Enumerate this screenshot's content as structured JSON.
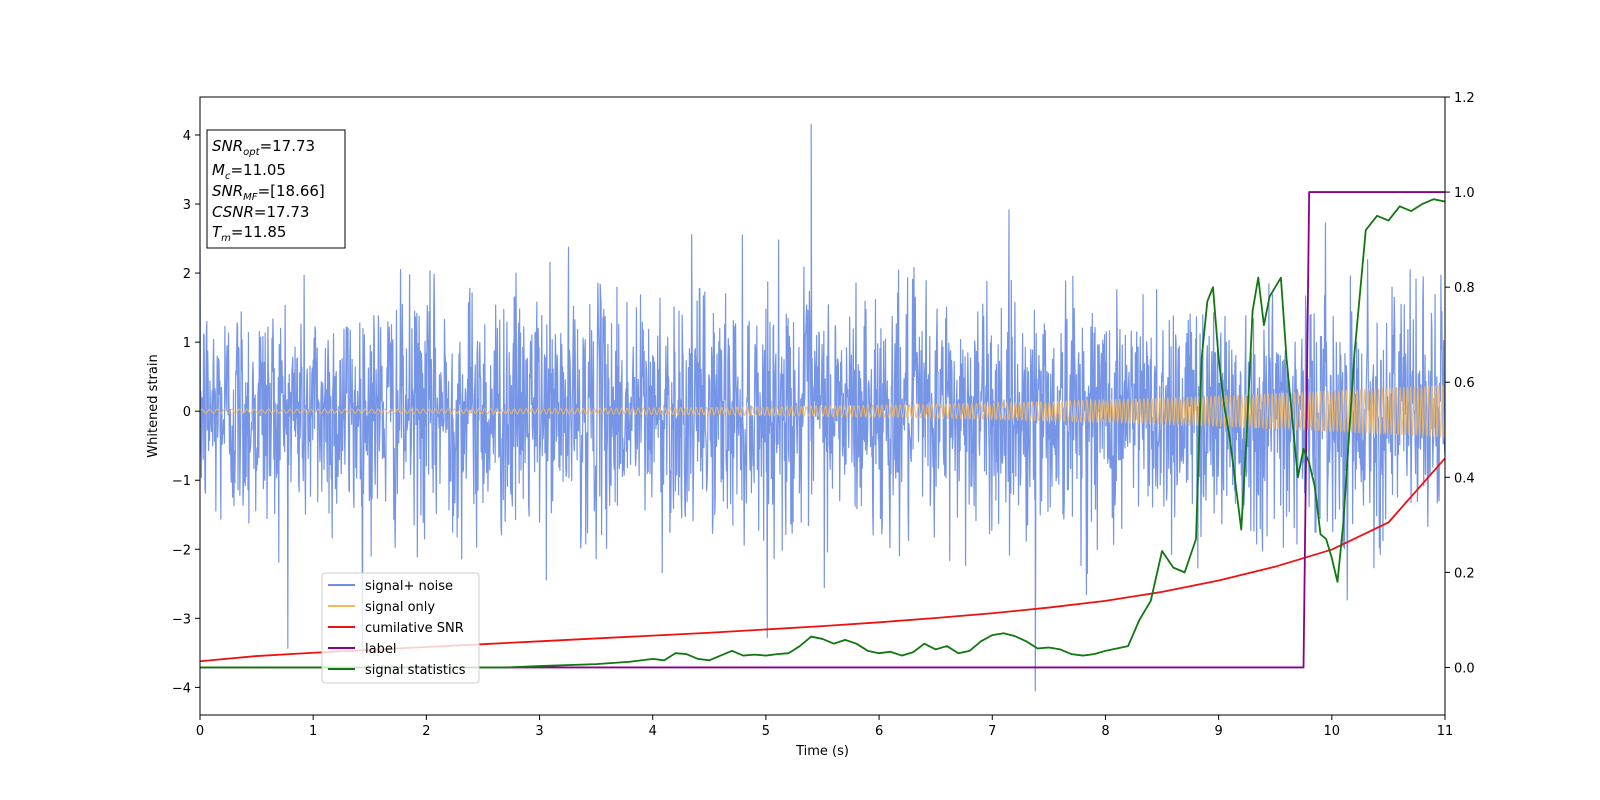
{
  "chart_data": {
    "type": "line",
    "xlabel": "Time (s)",
    "ylabel": "Whitened strain",
    "xlim": [
      0,
      11
    ],
    "ylim": [
      -4.4,
      4.55
    ],
    "y2lim": [
      -0.1,
      1.2
    ],
    "x_ticks": [
      0,
      1,
      2,
      3,
      4,
      5,
      6,
      7,
      8,
      9,
      10,
      11
    ],
    "y_ticks": [
      -4,
      -3,
      -2,
      -1,
      0,
      1,
      2,
      3,
      4
    ],
    "y2_ticks": [
      0.0,
      0.2,
      0.4,
      0.6,
      0.8,
      1.0,
      1.2
    ],
    "grid": false,
    "legend_position": "lower-left",
    "annotation": {
      "lines": [
        {
          "main": "SNR",
          "sub": "opt",
          "rest": "=17.73"
        },
        {
          "main": "M",
          "sub": "c",
          "rest": "=11.05"
        },
        {
          "main": "SNR",
          "sub": "MF",
          "rest": "=[18.66]"
        },
        {
          "main": "CSNR",
          "sub": "",
          "rest": "=17.73"
        },
        {
          "main": "T",
          "sub": "m",
          "rest": "=11.85"
        }
      ]
    },
    "series": [
      {
        "name": "signal+ noise",
        "axis": "left",
        "color": "#6f8fe6",
        "noise": {
          "sigma": 1.0,
          "peak_max": 4.15,
          "peak_min": -4.05,
          "dt": 0.004
        }
      },
      {
        "name": "signal only",
        "axis": "left",
        "color": "#f4b860",
        "chirp": {
          "amp_start": 0.03,
          "amp_end": 0.38,
          "cycles": 260
        }
      },
      {
        "name": "cumilative SNR",
        "axis": "right",
        "color": "#ee1111",
        "x": [
          0,
          0.5,
          1,
          1.5,
          2,
          2.5,
          3,
          3.5,
          4,
          4.5,
          5,
          5.5,
          6,
          6.5,
          7,
          7.5,
          8,
          8.5,
          9,
          9.5,
          10,
          10.5,
          11
        ],
        "y": [
          0.013,
          0.024,
          0.031,
          0.037,
          0.043,
          0.049,
          0.055,
          0.061,
          0.067,
          0.073,
          0.08,
          0.087,
          0.095,
          0.104,
          0.114,
          0.126,
          0.14,
          0.159,
          0.183,
          0.212,
          0.248,
          0.305,
          0.44
        ]
      },
      {
        "name": "label",
        "axis": "right",
        "color": "#880088",
        "x": [
          0,
          9.75,
          9.8,
          11
        ],
        "y": [
          0,
          0,
          1,
          1
        ]
      },
      {
        "name": "signal statistics",
        "axis": "right",
        "color": "#117711",
        "x": [
          0,
          1,
          2,
          2.7,
          3,
          3.5,
          3.8,
          4.0,
          4.1,
          4.2,
          4.3,
          4.4,
          4.5,
          4.6,
          4.7,
          4.8,
          4.9,
          5.0,
          5.1,
          5.2,
          5.3,
          5.4,
          5.5,
          5.6,
          5.7,
          5.8,
          5.9,
          6.0,
          6.1,
          6.2,
          6.3,
          6.4,
          6.5,
          6.6,
          6.7,
          6.8,
          6.9,
          7.0,
          7.1,
          7.2,
          7.3,
          7.4,
          7.5,
          7.6,
          7.7,
          7.8,
          7.9,
          8.0,
          8.1,
          8.2,
          8.3,
          8.4,
          8.5,
          8.6,
          8.7,
          8.8,
          8.85,
          8.9,
          8.95,
          9.0,
          9.05,
          9.1,
          9.2,
          9.25,
          9.3,
          9.35,
          9.4,
          9.45,
          9.5,
          9.55,
          9.6,
          9.7,
          9.75,
          9.8,
          9.85,
          9.9,
          9.95,
          10.0,
          10.05,
          10.1,
          10.2,
          10.3,
          10.4,
          10.5,
          10.6,
          10.7,
          10.8,
          10.9,
          11.0
        ],
        "y": [
          0.0,
          0.0,
          0.0,
          0.0,
          0.003,
          0.007,
          0.012,
          0.018,
          0.015,
          0.03,
          0.028,
          0.018,
          0.015,
          0.025,
          0.035,
          0.025,
          0.027,
          0.025,
          0.028,
          0.03,
          0.045,
          0.065,
          0.06,
          0.05,
          0.058,
          0.05,
          0.035,
          0.03,
          0.033,
          0.025,
          0.032,
          0.05,
          0.038,
          0.045,
          0.03,
          0.035,
          0.055,
          0.068,
          0.072,
          0.066,
          0.055,
          0.04,
          0.042,
          0.038,
          0.028,
          0.025,
          0.028,
          0.035,
          0.04,
          0.045,
          0.1,
          0.14,
          0.245,
          0.21,
          0.2,
          0.27,
          0.65,
          0.77,
          0.8,
          0.65,
          0.55,
          0.48,
          0.29,
          0.5,
          0.75,
          0.82,
          0.72,
          0.78,
          0.8,
          0.82,
          0.65,
          0.4,
          0.46,
          0.43,
          0.38,
          0.28,
          0.27,
          0.23,
          0.18,
          0.3,
          0.66,
          0.92,
          0.95,
          0.94,
          0.97,
          0.96,
          0.975,
          0.985,
          0.98
        ]
      }
    ]
  }
}
